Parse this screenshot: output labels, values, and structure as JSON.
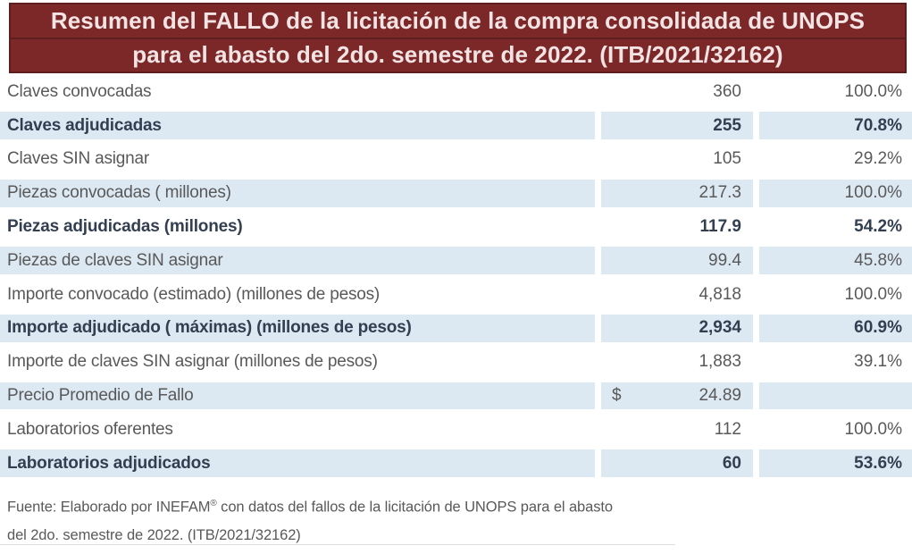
{
  "title": {
    "line1": "Resumen del FALLO de la licitación de la compra consolidada de UNOPS",
    "line2": "para el abasto del 2do. semestre de 2022. (ITB/2021/32162)"
  },
  "table": {
    "rows": [
      {
        "label": "Claves convocadas",
        "currency": "",
        "value": "360",
        "percent": "100.0%",
        "bold": false,
        "shaded": false
      },
      {
        "label": "Claves adjudicadas",
        "currency": "",
        "value": "255",
        "percent": "70.8%",
        "bold": true,
        "shaded": true
      },
      {
        "label": "Claves SIN asignar",
        "currency": "",
        "value": "105",
        "percent": "29.2%",
        "bold": false,
        "shaded": false
      },
      {
        "label": "Piezas convocadas ( millones)",
        "currency": "",
        "value": "217.3",
        "percent": "100.0%",
        "bold": false,
        "shaded": true
      },
      {
        "label": "Piezas adjudicadas  (millones)",
        "currency": "",
        "value": "117.9",
        "percent": "54.2%",
        "bold": true,
        "shaded": false
      },
      {
        "label": "Piezas de claves  SIN asignar",
        "currency": "",
        "value": "99.4",
        "percent": "45.8%",
        "bold": false,
        "shaded": true
      },
      {
        "label": "Importe convocado (estimado) (millones de pesos)",
        "currency": "",
        "value": "4,818",
        "percent": "100.0%",
        "bold": false,
        "shaded": false
      },
      {
        "label": "Importe adjudicado ( máximas) (millones de pesos)",
        "currency": "",
        "value": "2,934",
        "percent": "60.9%",
        "bold": true,
        "shaded": true
      },
      {
        "label": "Importe de claves SIN asignar (millones de pesos)",
        "currency": "",
        "value": "1,883",
        "percent": "39.1%",
        "bold": false,
        "shaded": false
      },
      {
        "label": "Precio Promedio de Fallo",
        "currency": "$",
        "value": "24.89",
        "percent": "",
        "bold": false,
        "shaded": true
      },
      {
        "label": "Laboratorios oferentes",
        "currency": "",
        "value": "112",
        "percent": "100.0%",
        "bold": false,
        "shaded": false
      },
      {
        "label": "Laboratorios adjudicados",
        "currency": "",
        "value": "60",
        "percent": "53.6%",
        "bold": true,
        "shaded": true
      }
    ]
  },
  "footer": {
    "line1_pre": "Fuente: Elaborado por INEFAM",
    "line1_sup": "®",
    "line1_post": " con datos del fallos de la licitación de UNOPS para el abasto",
    "line2": "del 2do. semestre de 2022. (ITB/2021/32162)"
  },
  "colors": {
    "header_bg": "#7d2828",
    "header_border": "#5e1e1e",
    "header_text": "#f2e4e4",
    "band": "#dce8f2",
    "text": "#595959",
    "bold_text": "#333f50"
  }
}
